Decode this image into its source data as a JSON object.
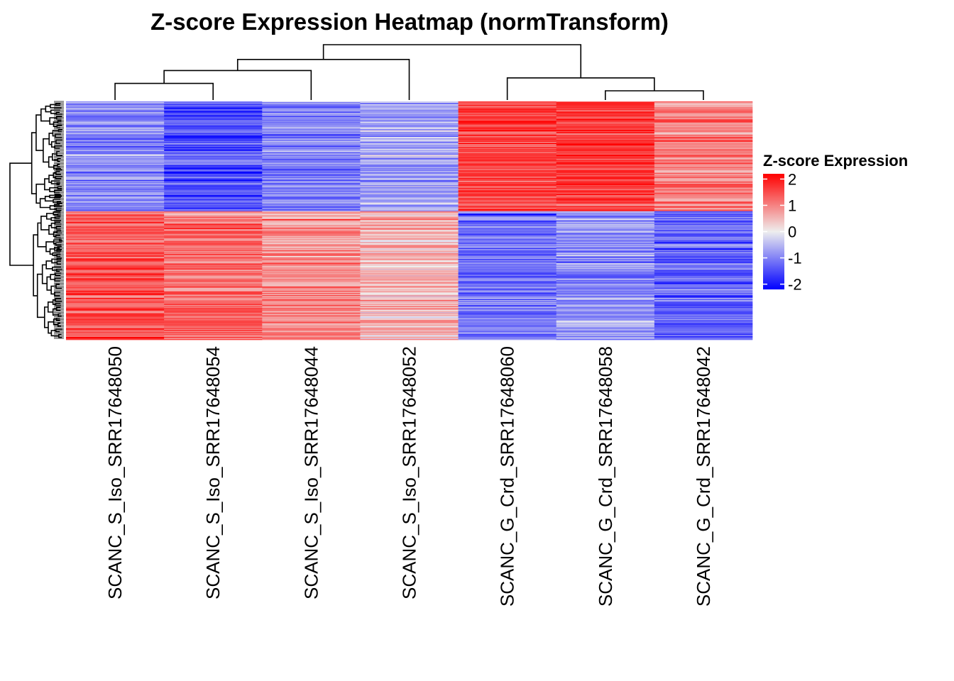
{
  "chart_data": {
    "type": "heatmap",
    "title": "Z-score Expression Heatmap (normTransform)",
    "columns": [
      "SCANC_S_Iso_SRR17648050",
      "SCANC_S_Iso_SRR17648054",
      "SCANC_S_Iso_SRR17648044",
      "SCANC_S_Iso_SRR17648052",
      "SCANC_G_Crd_SRR17648060",
      "SCANC_G_Crd_SRR17648058",
      "SCANC_G_Crd_SRR17648042"
    ],
    "column_dendrogram": {
      "merges": [
        {
          "left": "SCANC_S_Iso_SRR17648050",
          "right": "SCANC_S_Iso_SRR17648054",
          "height": 0.9
        },
        {
          "left": "cluster(50,54)",
          "right": "SCANC_S_Iso_SRR17648044",
          "height": 1.6
        },
        {
          "left": "cluster(50,54,44)",
          "right": "SCANC_S_Iso_SRR17648052",
          "height": 2.2
        },
        {
          "left": "SCANC_G_Crd_SRR17648058",
          "right": "SCANC_G_Crd_SRR17648042",
          "height": 0.5
        },
        {
          "left": "SCANC_G_Crd_SRR17648060",
          "right": "cluster(58,42)",
          "height": 1.2
        },
        {
          "left": "S_Iso cluster",
          "right": "G_Crd cluster",
          "height": 3.0
        }
      ]
    },
    "row_blocks": [
      {
        "name": "upper gene cluster",
        "row_fraction": 0.46,
        "mean_z": [
          -0.9,
          -1.5,
          -1.0,
          -0.7,
          1.6,
          1.7,
          1.0
        ]
      },
      {
        "name": "lower gene cluster",
        "row_fraction": 0.54,
        "mean_z": [
          1.4,
          1.2,
          0.9,
          0.5,
          -1.2,
          -0.9,
          -1.3
        ]
      }
    ],
    "legend": {
      "title": "Z-score Expression",
      "ticks": [
        2,
        1,
        0,
        -1,
        -2
      ],
      "range": [
        -2.2,
        2.2
      ],
      "low_color": "#0000ff",
      "mid_color": "#eeeeee",
      "high_color": "#ff0000"
    }
  }
}
